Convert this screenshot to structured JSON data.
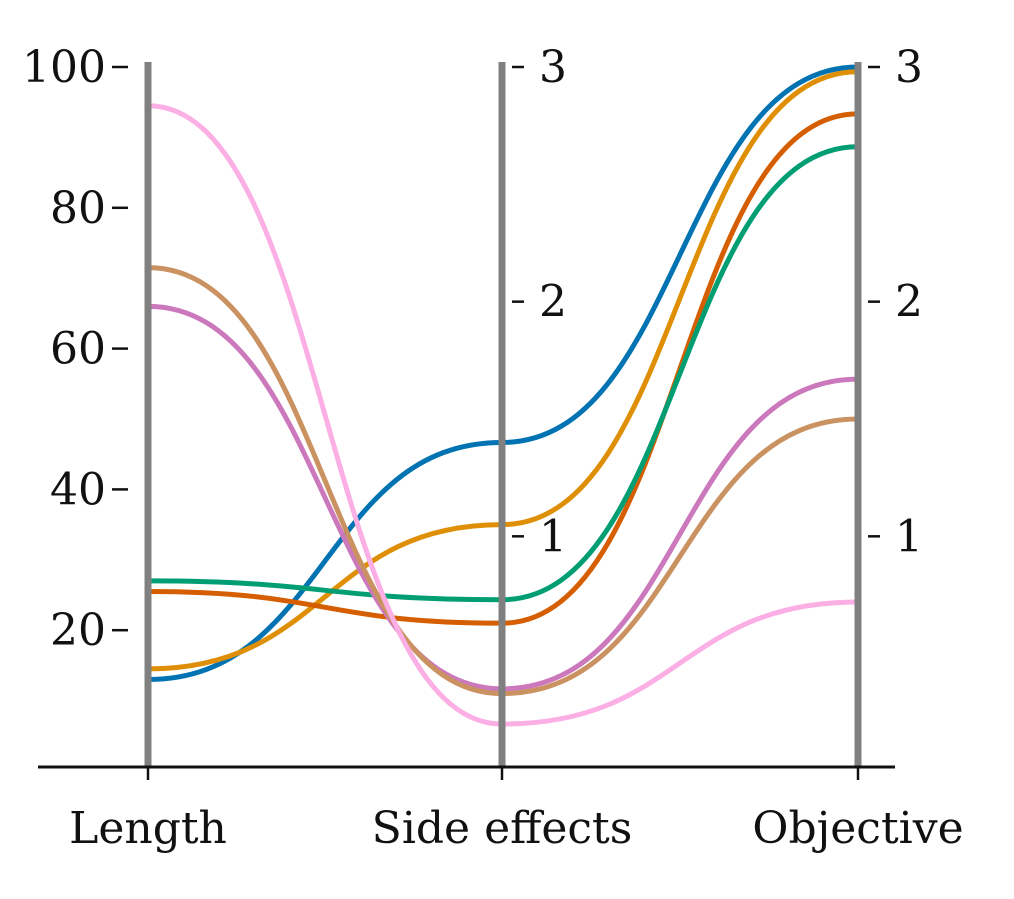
{
  "chart_data": {
    "type": "parallel-coordinates",
    "title": "",
    "axes": [
      {
        "name": "Length",
        "ticks": [
          20,
          40,
          60,
          80,
          100
        ],
        "tick_labels": [
          "20",
          "40",
          "60",
          "80",
          "100"
        ],
        "range": [
          0,
          100
        ]
      },
      {
        "name": "Side effects",
        "ticks": [
          1,
          2,
          3
        ],
        "tick_labels": [
          "1",
          "2",
          "3"
        ],
        "range": [
          0,
          3
        ]
      },
      {
        "name": "Objective",
        "ticks": [
          1,
          2,
          3
        ],
        "tick_labels": [
          "1",
          "2",
          "3"
        ],
        "range": [
          0,
          3
        ]
      }
    ],
    "series": [
      {
        "color": "#0173B2",
        "values": [
          13,
          1.4,
          3.0
        ]
      },
      {
        "color": "#DE8F05",
        "values": [
          14.5,
          1.05,
          2.98
        ]
      },
      {
        "color": "#D55E00",
        "values": [
          25.5,
          0.63,
          2.8
        ]
      },
      {
        "color": "#029E73",
        "values": [
          27,
          0.73,
          2.66
        ]
      },
      {
        "color": "#CC78BC",
        "values": [
          66,
          0.35,
          1.67
        ]
      },
      {
        "color": "#CA9161",
        "values": [
          71.5,
          0.33,
          1.5
        ]
      },
      {
        "color": "#FBAFE4",
        "values": [
          94.5,
          0.2,
          0.72
        ]
      }
    ],
    "axis_line_color": "#808080",
    "grid": false,
    "legend": "none"
  }
}
